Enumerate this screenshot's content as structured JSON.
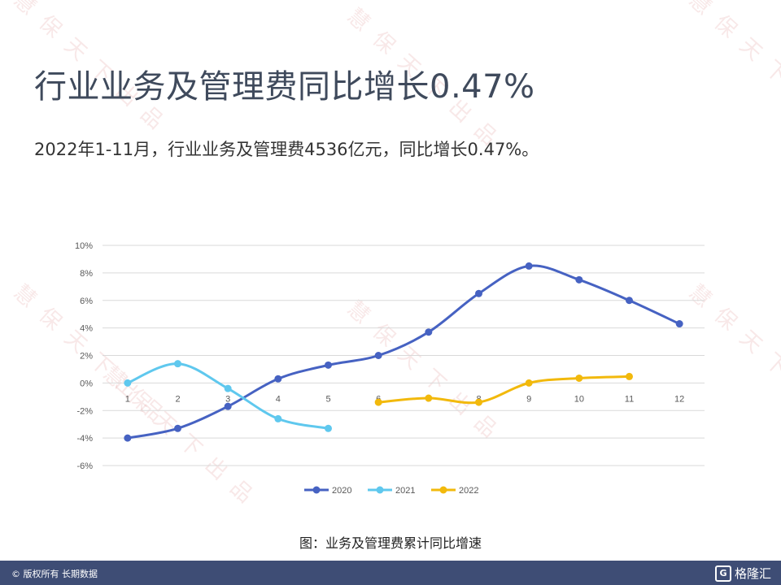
{
  "slide": {
    "title": "行业业务及管理费同比增长0.47%",
    "subtitle": "2022年1-11月，行业业务及管理费4536亿元，同比增长0.47%。",
    "caption": "图：业务及管理费累计同比增速"
  },
  "footer": {
    "copyright": "© 版权所有 长期数据",
    "logo_text": "格隆汇",
    "logo_mark": "G",
    "background": "#3e4d75"
  },
  "watermark_text": "慧保天下出品",
  "chart_data": {
    "type": "line",
    "title": "",
    "xlabel": "",
    "ylabel": "",
    "x": [
      "1",
      "2",
      "3",
      "4",
      "5",
      "6",
      "7",
      "8",
      "9",
      "10",
      "11",
      "12"
    ],
    "ylim": [
      -6,
      10
    ],
    "yticks": [
      10,
      8,
      6,
      4,
      2,
      0,
      -2,
      -4,
      -6
    ],
    "ytick_labels": [
      "10%",
      "8%",
      "6%",
      "4%",
      "2%",
      "0%",
      "-2%",
      "-4%",
      "-6%"
    ],
    "grid": true,
    "smooth": true,
    "legend_position": "bottom",
    "series": [
      {
        "name": "2020",
        "color": "#4662c2",
        "values": [
          -4.0,
          -3.3,
          -1.7,
          0.3,
          1.3,
          2.0,
          3.7,
          6.5,
          8.5,
          7.5,
          6.0,
          4.3
        ]
      },
      {
        "name": "2021",
        "color": "#5fc8ee",
        "values": [
          0.0,
          1.4,
          -0.4,
          -2.6,
          -3.3,
          null,
          null,
          null,
          null,
          null,
          null,
          null
        ]
      },
      {
        "name": "2022",
        "color": "#f2b90c",
        "values": [
          null,
          null,
          null,
          null,
          null,
          -1.4,
          -1.1,
          -1.4,
          0.0,
          0.35,
          0.47,
          null
        ]
      }
    ]
  }
}
